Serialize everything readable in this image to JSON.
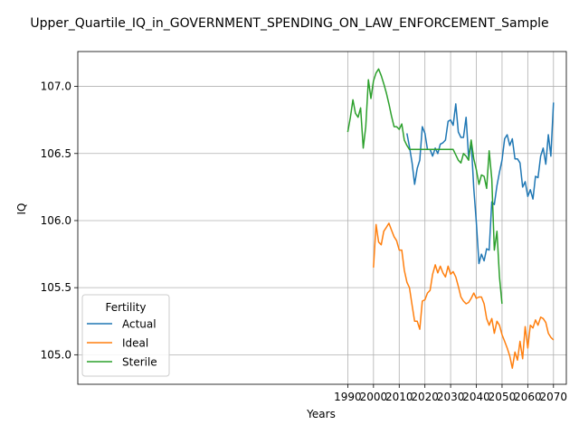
{
  "chart_data": {
    "type": "line",
    "title": "Upper_Quartile_IQ_in_GOVERNMENT_SPENDING_ON_LAW_ENFORCEMENT_Sample",
    "xlabel": "Years",
    "ylabel": "IQ",
    "xlim": [
      1885,
      2075
    ],
    "ylim": [
      104.78,
      107.26
    ],
    "xticks": [
      1990,
      2000,
      2010,
      2020,
      2030,
      2040,
      2050,
      2060,
      2070
    ],
    "xtick_labels": [
      "1990",
      "2000",
      "2010",
      "2020",
      "2030",
      "2040",
      "2050",
      "2060",
      "2070"
    ],
    "yticks": [
      105.0,
      105.5,
      106.0,
      106.5,
      107.0
    ],
    "ytick_labels": [
      "105.0",
      "105.5",
      "106.0",
      "106.5",
      "107.0"
    ],
    "grid": true,
    "legend": {
      "title": "Fertility",
      "position": "lower-left"
    },
    "series": [
      {
        "name": "Actual",
        "color": "#1f77b4",
        "x": [
          2013,
          2014,
          2015,
          2016,
          2017,
          2018,
          2019,
          2020,
          2021,
          2022,
          2023,
          2024,
          2025,
          2026,
          2027,
          2028,
          2029,
          2030,
          2031,
          2032,
          2033,
          2034,
          2035,
          2036,
          2037,
          2038,
          2039,
          2040,
          2041,
          2042,
          2043,
          2044,
          2045,
          2046,
          2047,
          2048,
          2049,
          2050,
          2051,
          2052,
          2053,
          2054,
          2055,
          2056,
          2057,
          2058,
          2059,
          2060,
          2061,
          2062,
          2063,
          2064,
          2065,
          2066,
          2067,
          2068,
          2069,
          2070
        ],
        "y": [
          106.65,
          106.55,
          106.43,
          106.27,
          106.39,
          106.45,
          106.7,
          106.65,
          106.53,
          106.53,
          106.48,
          106.54,
          106.5,
          106.57,
          106.58,
          106.6,
          106.74,
          106.75,
          106.71,
          106.87,
          106.66,
          106.62,
          106.62,
          106.77,
          106.47,
          106.59,
          106.24,
          105.99,
          105.68,
          105.75,
          105.7,
          105.79,
          105.78,
          106.14,
          106.12,
          106.26,
          106.36,
          106.45,
          106.61,
          106.64,
          106.56,
          106.61,
          106.46,
          106.46,
          106.43,
          106.25,
          106.29,
          106.18,
          106.23,
          106.16,
          106.33,
          106.32,
          106.48,
          106.54,
          106.42,
          106.64,
          106.48,
          106.88
        ]
      },
      {
        "name": "Ideal",
        "color": "#ff7f0e",
        "x": [
          2000,
          2001,
          2002,
          2003,
          2004,
          2005,
          2006,
          2007,
          2008,
          2009,
          2010,
          2011,
          2012,
          2013,
          2014,
          2015,
          2016,
          2017,
          2018,
          2019,
          2020,
          2021,
          2022,
          2023,
          2024,
          2025,
          2026,
          2027,
          2028,
          2029,
          2030,
          2031,
          2032,
          2033,
          2034,
          2035,
          2036,
          2037,
          2038,
          2039,
          2040,
          2041,
          2042,
          2043,
          2044,
          2045,
          2046,
          2047,
          2048,
          2049,
          2050,
          2051,
          2052,
          2053,
          2054,
          2055,
          2056,
          2057,
          2058,
          2059,
          2060,
          2061,
          2062,
          2063,
          2064,
          2065,
          2066,
          2067,
          2068,
          2069,
          2070
        ],
        "y": [
          105.65,
          105.97,
          105.84,
          105.82,
          105.92,
          105.95,
          105.98,
          105.93,
          105.88,
          105.85,
          105.78,
          105.78,
          105.63,
          105.54,
          105.5,
          105.37,
          105.25,
          105.25,
          105.19,
          105.4,
          105.41,
          105.46,
          105.48,
          105.6,
          105.67,
          105.61,
          105.66,
          105.61,
          105.58,
          105.66,
          105.6,
          105.62,
          105.58,
          105.51,
          105.43,
          105.4,
          105.38,
          105.39,
          105.42,
          105.46,
          105.42,
          105.43,
          105.43,
          105.38,
          105.27,
          105.22,
          105.27,
          105.16,
          105.25,
          105.22,
          105.15,
          105.1,
          105.05,
          104.99,
          104.9,
          105.02,
          104.96,
          105.1,
          104.97,
          105.21,
          105.05,
          105.22,
          105.2,
          105.26,
          105.22,
          105.28,
          105.27,
          105.24,
          105.16,
          105.13,
          105.11
        ]
      },
      {
        "name": "Sterile",
        "color": "#2ca02c",
        "x": [
          1990,
          1991,
          1992,
          1993,
          1994,
          1995,
          1996,
          1997,
          1998,
          1999,
          2000,
          2001,
          2002,
          2003,
          2004,
          2005,
          2006,
          2007,
          2008,
          2009,
          2010,
          2011,
          2012,
          2013,
          2014,
          2015,
          2016,
          2017,
          2018,
          2019,
          2020,
          2021,
          2022,
          2023,
          2024,
          2025,
          2026,
          2027,
          2028,
          2029,
          2030,
          2031,
          2032,
          2033,
          2034,
          2035,
          2036,
          2037,
          2038,
          2039,
          2040,
          2041,
          2042,
          2043,
          2044,
          2045,
          2046,
          2047,
          2048,
          2049,
          2050
        ],
        "y": [
          106.66,
          106.77,
          106.9,
          106.8,
          106.77,
          106.84,
          106.54,
          106.7,
          107.05,
          106.91,
          107.04,
          107.1,
          107.13,
          107.08,
          107.02,
          106.95,
          106.87,
          106.78,
          106.7,
          106.7,
          106.68,
          106.72,
          106.6,
          106.56,
          106.53,
          106.53,
          106.53,
          106.53,
          106.53,
          106.53,
          106.53,
          106.53,
          106.53,
          106.53,
          106.53,
          106.53,
          106.53,
          106.53,
          106.53,
          106.53,
          106.53,
          106.53,
          106.49,
          106.45,
          106.43,
          106.5,
          106.48,
          106.45,
          106.6,
          106.46,
          106.38,
          106.27,
          106.34,
          106.33,
          106.24,
          106.52,
          106.31,
          105.78,
          105.92,
          105.58,
          105.38
        ]
      }
    ]
  }
}
